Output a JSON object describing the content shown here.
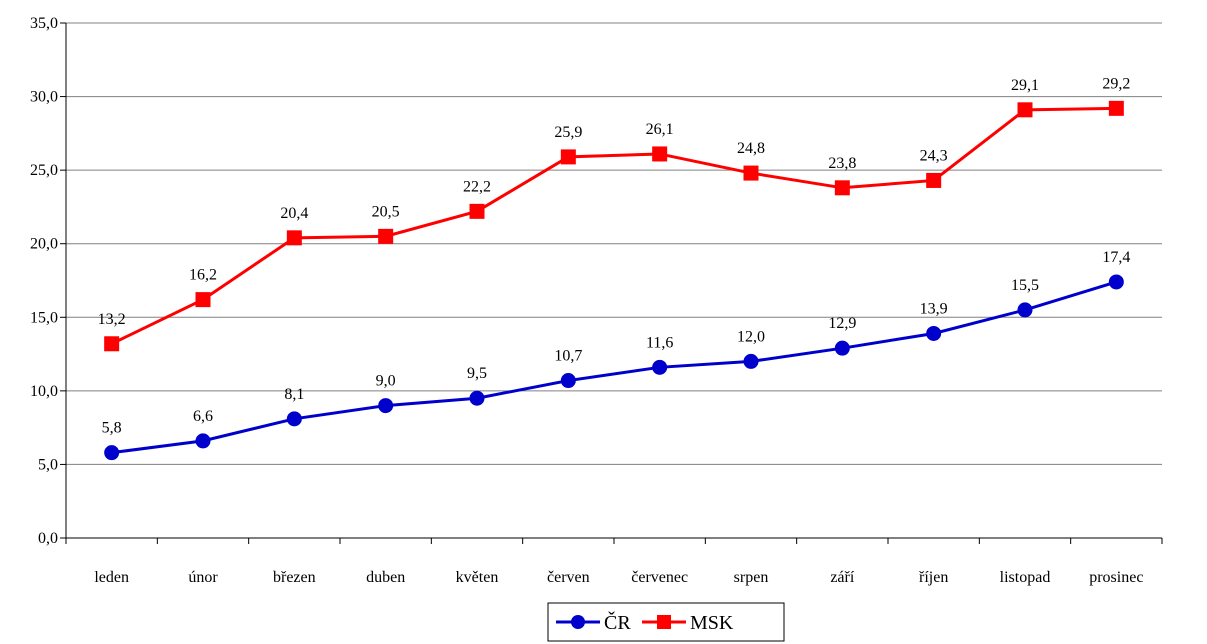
{
  "chart_data": {
    "type": "line",
    "categories": [
      "leden",
      "únor",
      "březen",
      "duben",
      "květen",
      "červen",
      "červenec",
      "srpen",
      "září",
      "říjen",
      "listopad",
      "prosinec"
    ],
    "series": [
      {
        "name": "ČR",
        "color": "#0000cc",
        "marker": "circle",
        "values": [
          5.8,
          6.6,
          8.1,
          9.0,
          9.5,
          10.7,
          11.6,
          12.0,
          12.9,
          13.9,
          15.5,
          17.4
        ],
        "labels": [
          "5,8",
          "6,6",
          "8,1",
          "9,0",
          "9,5",
          "10,7",
          "11,6",
          "12,0",
          "12,9",
          "13,9",
          "15,5",
          "17,4"
        ]
      },
      {
        "name": "MSK",
        "color": "#ff0000",
        "marker": "square",
        "values": [
          13.2,
          16.2,
          20.4,
          20.5,
          22.2,
          25.9,
          26.1,
          24.8,
          23.8,
          24.3,
          29.1,
          29.2
        ],
        "labels": [
          "13,2",
          "16,2",
          "20,4",
          "20,5",
          "22,2",
          "25,9",
          "26,1",
          "24,8",
          "23,8",
          "24,3",
          "29,1",
          "29,2"
        ]
      }
    ],
    "yticks": [
      "0,0",
      "5,0",
      "10,0",
      "15,0",
      "20,0",
      "25,0",
      "30,0",
      "35,0"
    ],
    "ylim": [
      0,
      35
    ],
    "ystep": 5,
    "grid": true,
    "legend_position": "bottom-center",
    "title": "",
    "xlabel": "",
    "ylabel": ""
  }
}
